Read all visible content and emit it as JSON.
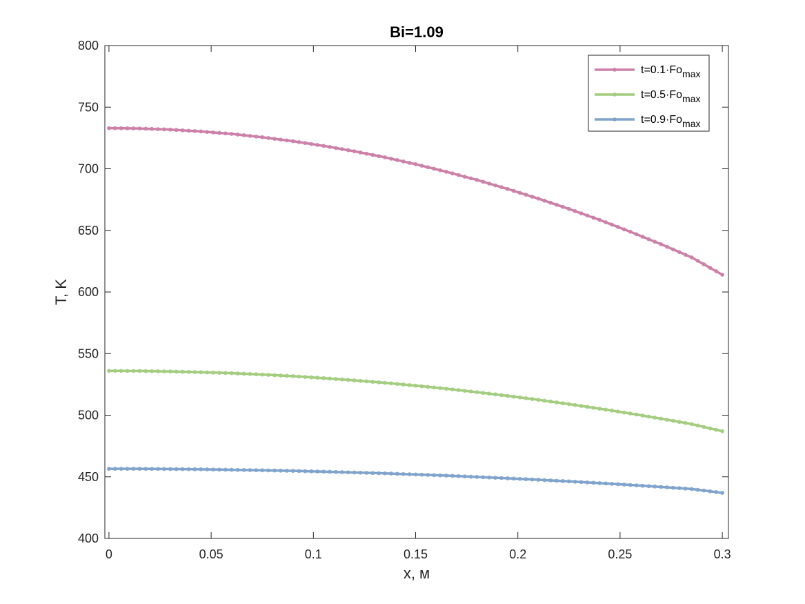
{
  "chart_data": {
    "type": "line",
    "title": "Bi=1.09",
    "xlabel": "x, м",
    "ylabel": "T, K",
    "xlim": [
      -0.002,
      0.303
    ],
    "ylim": [
      400,
      800
    ],
    "xticks": [
      0,
      0.05,
      0.1,
      0.15,
      0.2,
      0.25,
      0.3
    ],
    "xtick_labels": [
      "0",
      "0.05",
      "0.1",
      "0.15",
      "0.2",
      "0.25",
      "0.3"
    ],
    "yticks": [
      400,
      450,
      500,
      550,
      600,
      650,
      700,
      750,
      800
    ],
    "ytick_labels": [
      "400",
      "450",
      "500",
      "550",
      "600",
      "650",
      "700",
      "750",
      "800"
    ],
    "grid": false,
    "legend_position": "top-right",
    "x": [
      0,
      0.015,
      0.03,
      0.045,
      0.06,
      0.075,
      0.09,
      0.105,
      0.12,
      0.135,
      0.15,
      0.165,
      0.18,
      0.195,
      0.21,
      0.225,
      0.24,
      0.255,
      0.27,
      0.285,
      0.3
    ],
    "series": [
      {
        "name": "t=0.1·Fo",
        "name_sub": "max",
        "color": "#CC7FA8",
        "values": [
          733,
          732.7,
          731.8,
          730.3,
          728.3,
          725.6,
          722.4,
          718.6,
          714.2,
          709.3,
          703.7,
          697.6,
          690.9,
          683.6,
          675.8,
          667.4,
          658.5,
          648.9,
          638.8,
          628.1,
          614
        ]
      },
      {
        "name": "t=0.5·Fo",
        "name_sub": "max",
        "color": "#A3CC7F",
        "values": [
          536,
          535.9,
          535.5,
          534.9,
          534.1,
          533,
          531.7,
          530.1,
          528.3,
          526.3,
          524,
          521.5,
          518.7,
          515.7,
          512.5,
          509,
          505.3,
          501.4,
          497.2,
          492.8,
          487
        ]
      },
      {
        "name": "t=0.9·Fo",
        "name_sub": "max",
        "color": "#7FA3CC",
        "values": [
          456.5,
          456.5,
          456.3,
          456.1,
          455.7,
          455.3,
          454.8,
          454.2,
          453.5,
          452.8,
          451.9,
          451,
          449.9,
          448.8,
          447.6,
          446.3,
          444.9,
          443.4,
          441.8,
          440.1,
          437
        ]
      }
    ]
  }
}
